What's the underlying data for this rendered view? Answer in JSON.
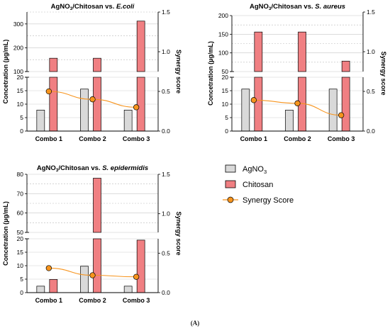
{
  "figure": {
    "caption": "(A)",
    "legend": [
      {
        "label": "AgNO",
        "sub": "3",
        "kind": "bar",
        "color": "#d9d9d9"
      },
      {
        "label": "Chitosan",
        "kind": "bar",
        "color": "#f07f82"
      },
      {
        "label": "Synergy Score",
        "kind": "line",
        "color": "#f7941d"
      }
    ]
  },
  "chart_data": [
    {
      "type": "bar",
      "title_prefix": "AgNO",
      "title_sub": "3",
      "title_mid": "/Chitosan vs. ",
      "title_species": "E.coli",
      "categories": [
        "Combo 1",
        "Combo 2",
        "Combo 3"
      ],
      "ylabel": "Concetration (µg/mL)",
      "y2label": "Synergy score",
      "axis_break": true,
      "ylim_lower": [
        0,
        20
      ],
      "ylim_upper": [
        100,
        350
      ],
      "yticks_lower": [
        "0",
        "5",
        "10",
        "15",
        "20"
      ],
      "yticks_upper": [
        "100",
        "200",
        "300"
      ],
      "y2lim": [
        0,
        1.5
      ],
      "y2ticks": [
        "0.0",
        "0.5",
        "1.0",
        "1.5"
      ],
      "series": [
        {
          "name": "AgNO3",
          "values": [
            7.8,
            15.6,
            7.8
          ]
        },
        {
          "name": "Chitosan",
          "values": [
            156,
            156,
            312
          ]
        },
        {
          "name": "Synergy Score",
          "axis": "right",
          "values": [
            0.5,
            0.4,
            0.3
          ]
        }
      ]
    },
    {
      "type": "bar",
      "title_prefix": "AgNO",
      "title_sub": "3",
      "title_mid": "/Chitosan vs. ",
      "title_species": "S. aureus",
      "categories": [
        "Combo 1",
        "Combo 2",
        "Combo 3"
      ],
      "ylabel": "Concetration (µg/mL)",
      "y2label": "Synergy score",
      "axis_break": true,
      "ylim_lower": [
        0,
        20
      ],
      "ylim_upper": [
        50,
        200
      ],
      "yticks_lower": [
        "0",
        "5",
        "10",
        "15",
        "20"
      ],
      "yticks_upper": [
        "50",
        "100",
        "150",
        "200"
      ],
      "y2lim": [
        0,
        1.5
      ],
      "y2ticks": [
        "0.0",
        "0.5",
        "1.0",
        "1.5"
      ],
      "series": [
        {
          "name": "AgNO3",
          "values": [
            15.6,
            7.8,
            15.6
          ]
        },
        {
          "name": "Chitosan",
          "values": [
            156,
            156,
            78
          ]
        },
        {
          "name": "Synergy Score",
          "axis": "right",
          "values": [
            0.39,
            0.35,
            0.2
          ]
        }
      ]
    },
    {
      "type": "bar",
      "title_prefix": "AgNO",
      "title_sub": "3",
      "title_mid": "/Chitosan vs. ",
      "title_species": "S. epidermidis",
      "categories": [
        "Combo 1",
        "Combo 2",
        "Combo 3"
      ],
      "ylabel": "Concetration (µg/mL)",
      "y2label": "Synergy score",
      "axis_break": true,
      "ylim_lower": [
        0,
        20
      ],
      "ylim_upper": [
        50,
        80
      ],
      "yticks_lower": [
        "0",
        "5",
        "10",
        "15",
        "20"
      ],
      "yticks_upper": [
        "50",
        "60",
        "70",
        "80"
      ],
      "y2lim": [
        0,
        1.5
      ],
      "y2ticks": [
        "0.0",
        "0.5",
        "1.0",
        "1.5"
      ],
      "series": [
        {
          "name": "AgNO3",
          "values": [
            2.4,
            9.8,
            2.4
          ]
        },
        {
          "name": "Chitosan",
          "values": [
            4.9,
            78,
            19.5
          ]
        },
        {
          "name": "Synergy Score",
          "axis": "right",
          "values": [
            0.31,
            0.22,
            0.2
          ]
        }
      ]
    }
  ]
}
